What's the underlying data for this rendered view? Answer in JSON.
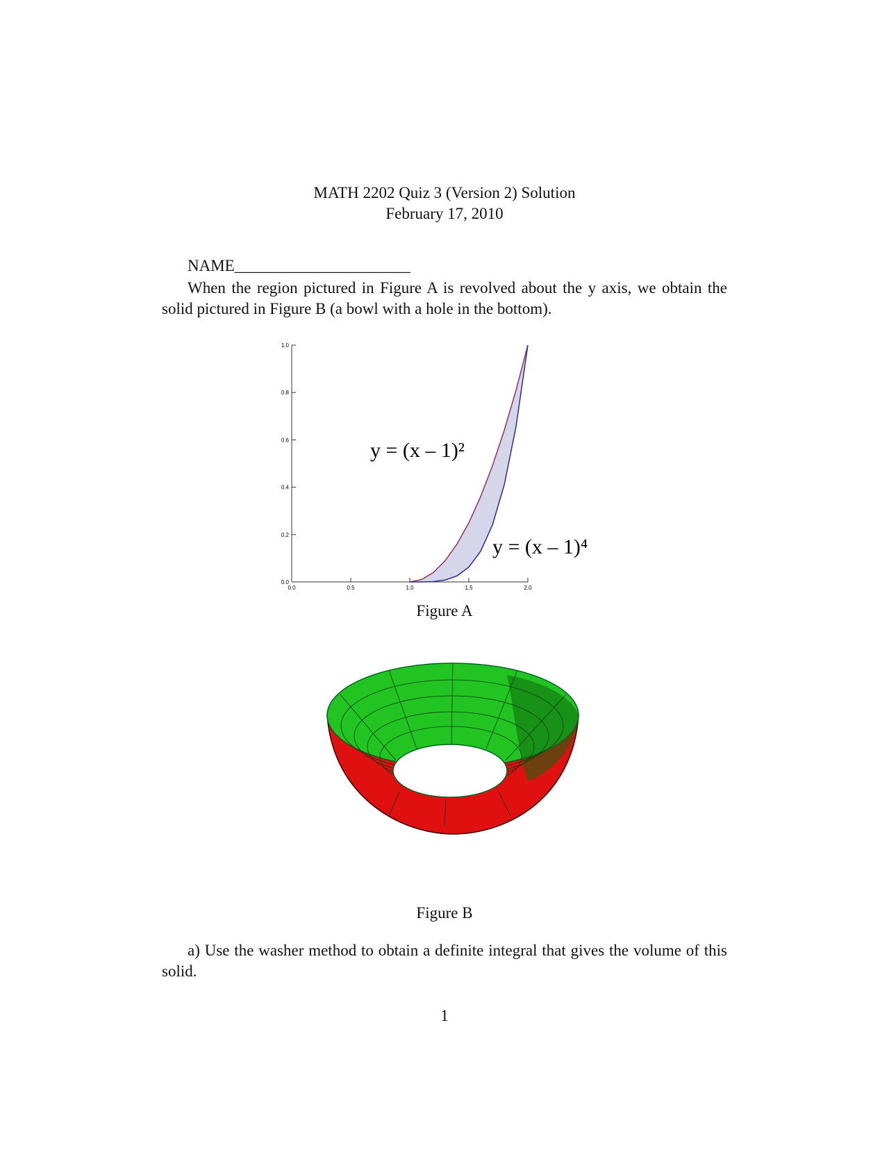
{
  "header": {
    "title": "MATH 2202 Quiz 3 (Version 2) Solution",
    "date": "February 17, 2010"
  },
  "name_label": "NAME______________________",
  "paragraph": "When the region pictured in Figure A is revolved about the y axis, we obtain the solid pictured in Figure B (a bowl with a hole in the bottom).",
  "figure_a": {
    "chart_data": {
      "type": "area",
      "x": [
        1,
        1.1,
        1.2,
        1.3,
        1.4,
        1.5,
        1.6,
        1.7,
        1.8,
        1.9,
        2
      ],
      "series": [
        {
          "name": "y = (x – 1)²",
          "color": "#9b2d5a",
          "values": [
            0,
            0.01,
            0.04,
            0.09,
            0.16,
            0.25,
            0.36,
            0.49,
            0.64,
            0.81,
            1
          ]
        },
        {
          "name": "y = (x – 1)⁴",
          "color": "#2a2aa0",
          "values": [
            0,
            0.0001,
            0.0016,
            0.0081,
            0.0256,
            0.0625,
            0.1296,
            0.2401,
            0.4096,
            0.6561,
            1
          ]
        }
      ],
      "fill_color": "#d6d6ea",
      "xlim": [
        0,
        2
      ],
      "ylim": [
        0,
        1
      ],
      "xticks": [
        {
          "value": 0,
          "label": "0.0"
        },
        {
          "value": 0.5,
          "label": "0.5"
        },
        {
          "value": 1,
          "label": "1.0"
        },
        {
          "value": 1.5,
          "label": "1.5"
        },
        {
          "value": 2,
          "label": "2.0"
        }
      ],
      "yticks": [
        {
          "value": 0,
          "label": "0.0"
        },
        {
          "value": 0.2,
          "label": "0.2"
        },
        {
          "value": 0.4,
          "label": "0.4"
        },
        {
          "value": 0.6,
          "label": "0.6"
        },
        {
          "value": 0.8,
          "label": "0.8"
        },
        {
          "value": 1,
          "label": "1.0"
        }
      ]
    },
    "caption": "Figure A"
  },
  "figure_b": {
    "caption": "Figure B"
  },
  "question": "a) Use the washer method to obtain a definite integral that gives the volume of this solid.",
  "page_number": "1"
}
